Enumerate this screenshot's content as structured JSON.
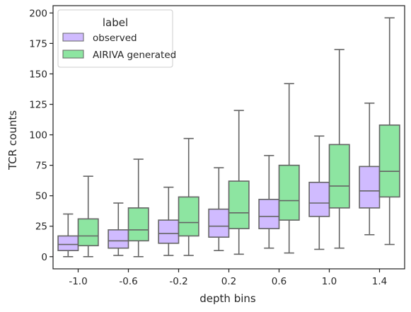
{
  "chart_data": {
    "type": "boxplot",
    "xlabel": "depth bins",
    "ylabel": "TCR counts",
    "categories": [
      "-1.0",
      "-0.6",
      "-0.2",
      "0.2",
      "0.6",
      "1.0",
      "1.4"
    ],
    "ylim": [
      -10,
      206
    ],
    "yticks": [
      0,
      25,
      50,
      75,
      100,
      125,
      150,
      175,
      200
    ],
    "grid": false,
    "legend": {
      "title": "label",
      "placement": "top-left",
      "entries": [
        "observed",
        "AIRIVA generated"
      ]
    },
    "series": [
      {
        "name": "observed",
        "color": "#d0bbff",
        "boxes": [
          {
            "whisker_low": 0,
            "q1": 5,
            "median": 10,
            "q3": 17,
            "whisker_high": 35
          },
          {
            "whisker_low": 1,
            "q1": 7,
            "median": 13,
            "q3": 22,
            "whisker_high": 44
          },
          {
            "whisker_low": 1,
            "q1": 11,
            "median": 19,
            "q3": 30,
            "whisker_high": 57
          },
          {
            "whisker_low": 5,
            "q1": 16,
            "median": 25,
            "q3": 39,
            "whisker_high": 73
          },
          {
            "whisker_low": 7,
            "q1": 23,
            "median": 33,
            "q3": 47,
            "whisker_high": 83
          },
          {
            "whisker_low": 6,
            "q1": 33,
            "median": 44,
            "q3": 61,
            "whisker_high": 99
          },
          {
            "whisker_low": 18,
            "q1": 40,
            "median": 54,
            "q3": 74,
            "whisker_high": 126
          }
        ]
      },
      {
        "name": "AIRIVA generated",
        "color": "#8de5a1",
        "boxes": [
          {
            "whisker_low": 0,
            "q1": 9,
            "median": 17,
            "q3": 31,
            "whisker_high": 66
          },
          {
            "whisker_low": 0,
            "q1": 13,
            "median": 22,
            "q3": 40,
            "whisker_high": 80
          },
          {
            "whisker_low": 1,
            "q1": 17,
            "median": 28,
            "q3": 49,
            "whisker_high": 97
          },
          {
            "whisker_low": 2,
            "q1": 23,
            "median": 36,
            "q3": 62,
            "whisker_high": 120
          },
          {
            "whisker_low": 3,
            "q1": 30,
            "median": 46,
            "q3": 75,
            "whisker_high": 142
          },
          {
            "whisker_low": 7,
            "q1": 40,
            "median": 58,
            "q3": 92,
            "whisker_high": 170
          },
          {
            "whisker_low": 10,
            "q1": 49,
            "median": 70,
            "q3": 108,
            "whisker_high": 196
          }
        ]
      }
    ],
    "line_color": "#646464",
    "axis_color": "#262626"
  }
}
